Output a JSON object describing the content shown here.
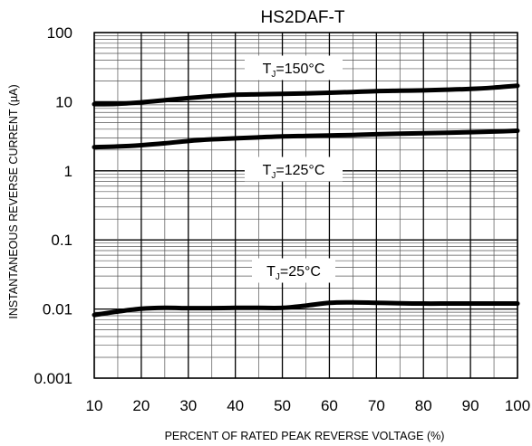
{
  "chart_data": {
    "type": "line",
    "title": "HS2DAF-T",
    "xlabel": "PERCENT OF RATED PEAK REVERSE VOLTAGE (%)",
    "ylabel": "INSTANTANEOUS REVERSE CURRENT (µA)",
    "x_scale": "linear",
    "y_scale": "log",
    "xlim": [
      10,
      100
    ],
    "ylim": [
      0.001,
      100
    ],
    "grid": true,
    "x_ticks": [
      "10",
      "20",
      "30",
      "40",
      "50",
      "60",
      "70",
      "80",
      "90",
      "100"
    ],
    "y_ticks": [
      "100",
      "10",
      "1",
      "0.1",
      "0.01",
      "0.001"
    ],
    "series": [
      {
        "label_main": "T",
        "label_sub": "J",
        "label_tail": "=150°C",
        "color": "#000000",
        "x": [
          10,
          15,
          20,
          25,
          30,
          35,
          40,
          45,
          50,
          55,
          60,
          65,
          70,
          75,
          80,
          85,
          90,
          95,
          100
        ],
        "y": [
          9.2,
          9.3,
          9.8,
          10.5,
          11.3,
          12.0,
          12.6,
          12.8,
          13.0,
          13.2,
          13.5,
          13.8,
          14.2,
          14.4,
          14.6,
          14.9,
          15.3,
          16.0,
          17.0
        ]
      },
      {
        "label_main": "T",
        "label_sub": "J",
        "label_tail": "=125°C",
        "color": "#000000",
        "x": [
          10,
          15,
          20,
          25,
          30,
          35,
          40,
          45,
          50,
          55,
          60,
          65,
          70,
          75,
          80,
          85,
          90,
          95,
          100
        ],
        "y": [
          2.2,
          2.25,
          2.35,
          2.5,
          2.7,
          2.85,
          2.95,
          3.05,
          3.15,
          3.2,
          3.25,
          3.3,
          3.38,
          3.45,
          3.5,
          3.55,
          3.62,
          3.7,
          3.8
        ]
      },
      {
        "label_main": "T",
        "label_sub": "J",
        "label_tail": "=25°C",
        "color": "#000000",
        "x": [
          10,
          15,
          20,
          25,
          30,
          35,
          40,
          45,
          50,
          55,
          60,
          65,
          70,
          75,
          80,
          85,
          90,
          95,
          100
        ],
        "y": [
          0.0082,
          0.0092,
          0.0101,
          0.0104,
          0.0103,
          0.0103,
          0.0104,
          0.0104,
          0.0104,
          0.0112,
          0.0123,
          0.0125,
          0.0123,
          0.0121,
          0.012,
          0.012,
          0.012,
          0.012,
          0.012
        ]
      }
    ]
  }
}
